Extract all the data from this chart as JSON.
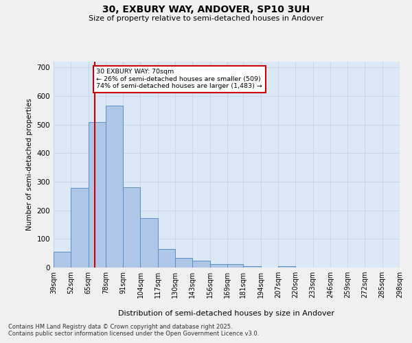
{
  "title1": "30, EXBURY WAY, ANDOVER, SP10 3UH",
  "title2": "Size of property relative to semi-detached houses in Andover",
  "bar_values": [
    55,
    278,
    510,
    567,
    281,
    172,
    66,
    34,
    25,
    12,
    12,
    6,
    0,
    5,
    0,
    0,
    0,
    0,
    0,
    0
  ],
  "bin_labels": [
    "39sqm",
    "52sqm",
    "65sqm",
    "78sqm",
    "91sqm",
    "104sqm",
    "117sqm",
    "130sqm",
    "143sqm",
    "156sqm",
    "169sqm",
    "181sqm",
    "194sqm",
    "207sqm",
    "220sqm",
    "233sqm",
    "246sqm",
    "259sqm",
    "272sqm",
    "285sqm",
    "298sqm"
  ],
  "bin_edges": [
    39,
    52,
    65,
    78,
    91,
    104,
    117,
    130,
    143,
    156,
    169,
    181,
    194,
    207,
    220,
    233,
    246,
    259,
    272,
    285,
    298
  ],
  "bar_color": "#aec6e8",
  "bar_edge_color": "#5a8fc2",
  "grid_color": "#c8d8e8",
  "background_color": "#dce8f5",
  "fig_background": "#f0f0f0",
  "vline_x": 70,
  "vline_color": "#cc0000",
  "annotation_title": "30 EXBURY WAY: 70sqm",
  "annotation_line1": "← 26% of semi-detached houses are smaller (509)",
  "annotation_line2": "74% of semi-detached houses are larger (1,483) →",
  "annotation_box_color": "#cc0000",
  "ylabel": "Number of semi-detached properties",
  "xlabel": "Distribution of semi-detached houses by size in Andover",
  "ylim": [
    0,
    720
  ],
  "yticks": [
    0,
    100,
    200,
    300,
    400,
    500,
    600,
    700
  ],
  "footer1": "Contains HM Land Registry data © Crown copyright and database right 2025.",
  "footer2": "Contains public sector information licensed under the Open Government Licence v3.0."
}
